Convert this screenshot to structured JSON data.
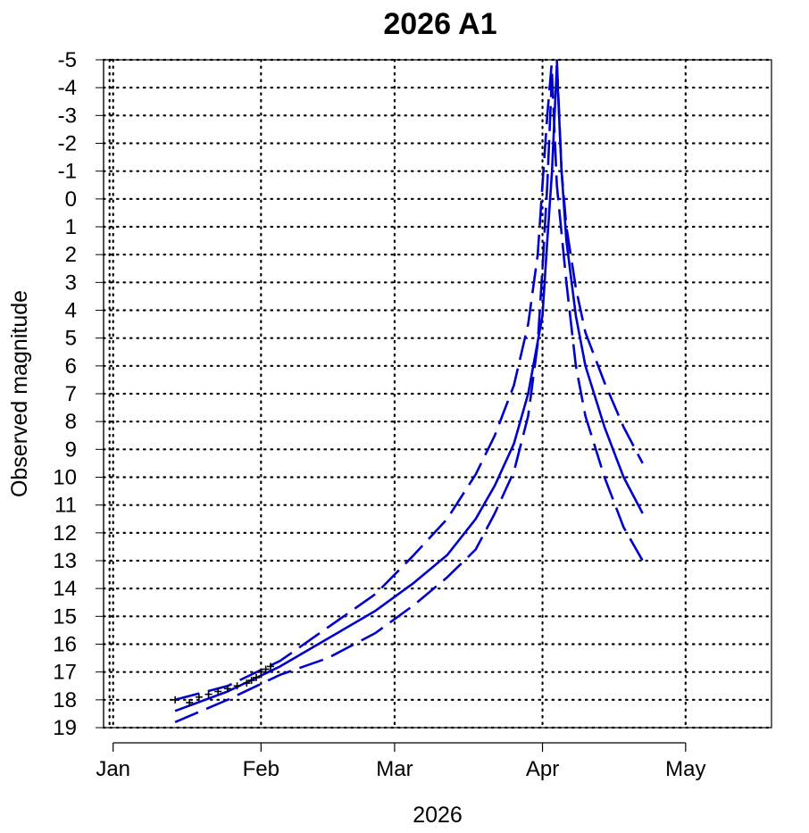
{
  "chart_data": {
    "type": "line",
    "title": "2026 A1",
    "xlabel": "2026",
    "ylabel": "Observed magnitude",
    "x_ticks": [
      {
        "date": "2026-01-01",
        "label": "Jan"
      },
      {
        "date": "2026-02-01",
        "label": "Feb"
      },
      {
        "date": "2026-03-01",
        "label": "Mar"
      },
      {
        "date": "2026-04-01",
        "label": "Apr"
      },
      {
        "date": "2026-05-01",
        "label": "May"
      }
    ],
    "xlim": [
      "2025-12-30",
      "2026-05-19"
    ],
    "ylim": [
      19,
      -5
    ],
    "y_inverted": true,
    "y_ticks": [
      -5,
      -4,
      -3,
      -2,
      -1,
      0,
      1,
      2,
      3,
      4,
      5,
      6,
      7,
      8,
      9,
      10,
      11,
      12,
      13,
      14,
      15,
      16,
      17,
      18,
      19
    ],
    "y_tick_labels": [
      "-5",
      "-4",
      "-3",
      "-2",
      "-1",
      "0",
      "1",
      "2",
      "3",
      "4",
      "5",
      "6",
      "7",
      "8",
      "9",
      "10",
      "11",
      "12",
      "13",
      "14",
      "15",
      "16",
      "17",
      "18",
      "19"
    ],
    "grid": "dotted",
    "line_color": "#0000cc",
    "series": [
      {
        "style": "solid",
        "x": [
          "2026-01-14",
          "2026-01-25",
          "2026-02-05",
          "2026-02-15",
          "2026-02-25",
          "2026-03-05",
          "2026-03-12",
          "2026-03-18",
          "2026-03-22",
          "2026-03-26",
          "2026-03-29",
          "2026-04-01",
          "2026-04-02",
          "2026-04-03",
          "2026-04-04"
        ],
        "y": [
          18.4,
          17.7,
          16.8,
          15.8,
          14.8,
          13.8,
          12.8,
          11.5,
          10.3,
          8.8,
          7.0,
          4.2,
          1.5,
          -1.0,
          -4.8
        ]
      },
      {
        "style": "solid",
        "x": [
          "2026-04-04",
          "2026-04-05",
          "2026-04-06",
          "2026-04-08",
          "2026-04-10",
          "2026-04-14",
          "2026-04-18",
          "2026-04-22"
        ],
        "y": [
          -4.8,
          -1.0,
          1.5,
          4.2,
          6.0,
          8.2,
          10.0,
          11.3
        ]
      },
      {
        "style": "dashed",
        "x": [
          "2026-01-14",
          "2026-01-25",
          "2026-02-05",
          "2026-02-15",
          "2026-02-25",
          "2026-03-05",
          "2026-03-12",
          "2026-03-18",
          "2026-03-22",
          "2026-03-26",
          "2026-03-29",
          "2026-03-31",
          "2026-04-01",
          "2026-04-02",
          "2026-04-03"
        ],
        "y": [
          18.0,
          17.5,
          16.6,
          15.4,
          14.2,
          12.8,
          11.5,
          9.9,
          8.5,
          6.7,
          4.5,
          2.0,
          -0.5,
          -3.0,
          -5.0
        ]
      },
      {
        "style": "dashed",
        "x": [
          "2026-04-04",
          "2026-04-05",
          "2026-04-06",
          "2026-04-08",
          "2026-04-10",
          "2026-04-14",
          "2026-04-18",
          "2026-04-22"
        ],
        "y": [
          -5.0,
          -1.0,
          1.0,
          3.2,
          4.8,
          6.6,
          8.2,
          9.5
        ]
      },
      {
        "style": "dashed",
        "x": [
          "2026-01-14",
          "2026-01-25",
          "2026-02-05",
          "2026-02-15",
          "2026-02-25",
          "2026-03-05",
          "2026-03-12",
          "2026-03-18",
          "2026-03-22",
          "2026-03-26",
          "2026-03-29",
          "2026-03-31",
          "2026-04-01",
          "2026-04-02",
          "2026-04-03"
        ],
        "y": [
          18.8,
          18.0,
          17.1,
          16.5,
          15.6,
          14.6,
          13.6,
          12.6,
          11.3,
          9.8,
          7.8,
          5.2,
          2.5,
          -0.5,
          -4.5
        ]
      },
      {
        "style": "dashed",
        "x": [
          "2026-04-03",
          "2026-04-04",
          "2026-04-06",
          "2026-04-08",
          "2026-04-10",
          "2026-04-14",
          "2026-04-18",
          "2026-04-22"
        ],
        "y": [
          -4.5,
          -0.5,
          3.0,
          6.0,
          7.8,
          10.0,
          11.8,
          13.0
        ]
      }
    ],
    "observations": {
      "color": "#000000",
      "x": [
        "2026-01-14",
        "2026-01-17",
        "2026-01-19",
        "2026-01-21",
        "2026-01-23",
        "2026-01-25",
        "2026-01-27",
        "2026-01-29",
        "2026-01-30",
        "2026-01-31",
        "2026-02-01",
        "2026-02-02",
        "2026-02-03"
      ],
      "y": [
        18.0,
        18.1,
        17.9,
        17.8,
        17.7,
        17.6,
        17.5,
        17.4,
        17.3,
        17.2,
        17.0,
        16.9,
        16.8
      ]
    }
  }
}
